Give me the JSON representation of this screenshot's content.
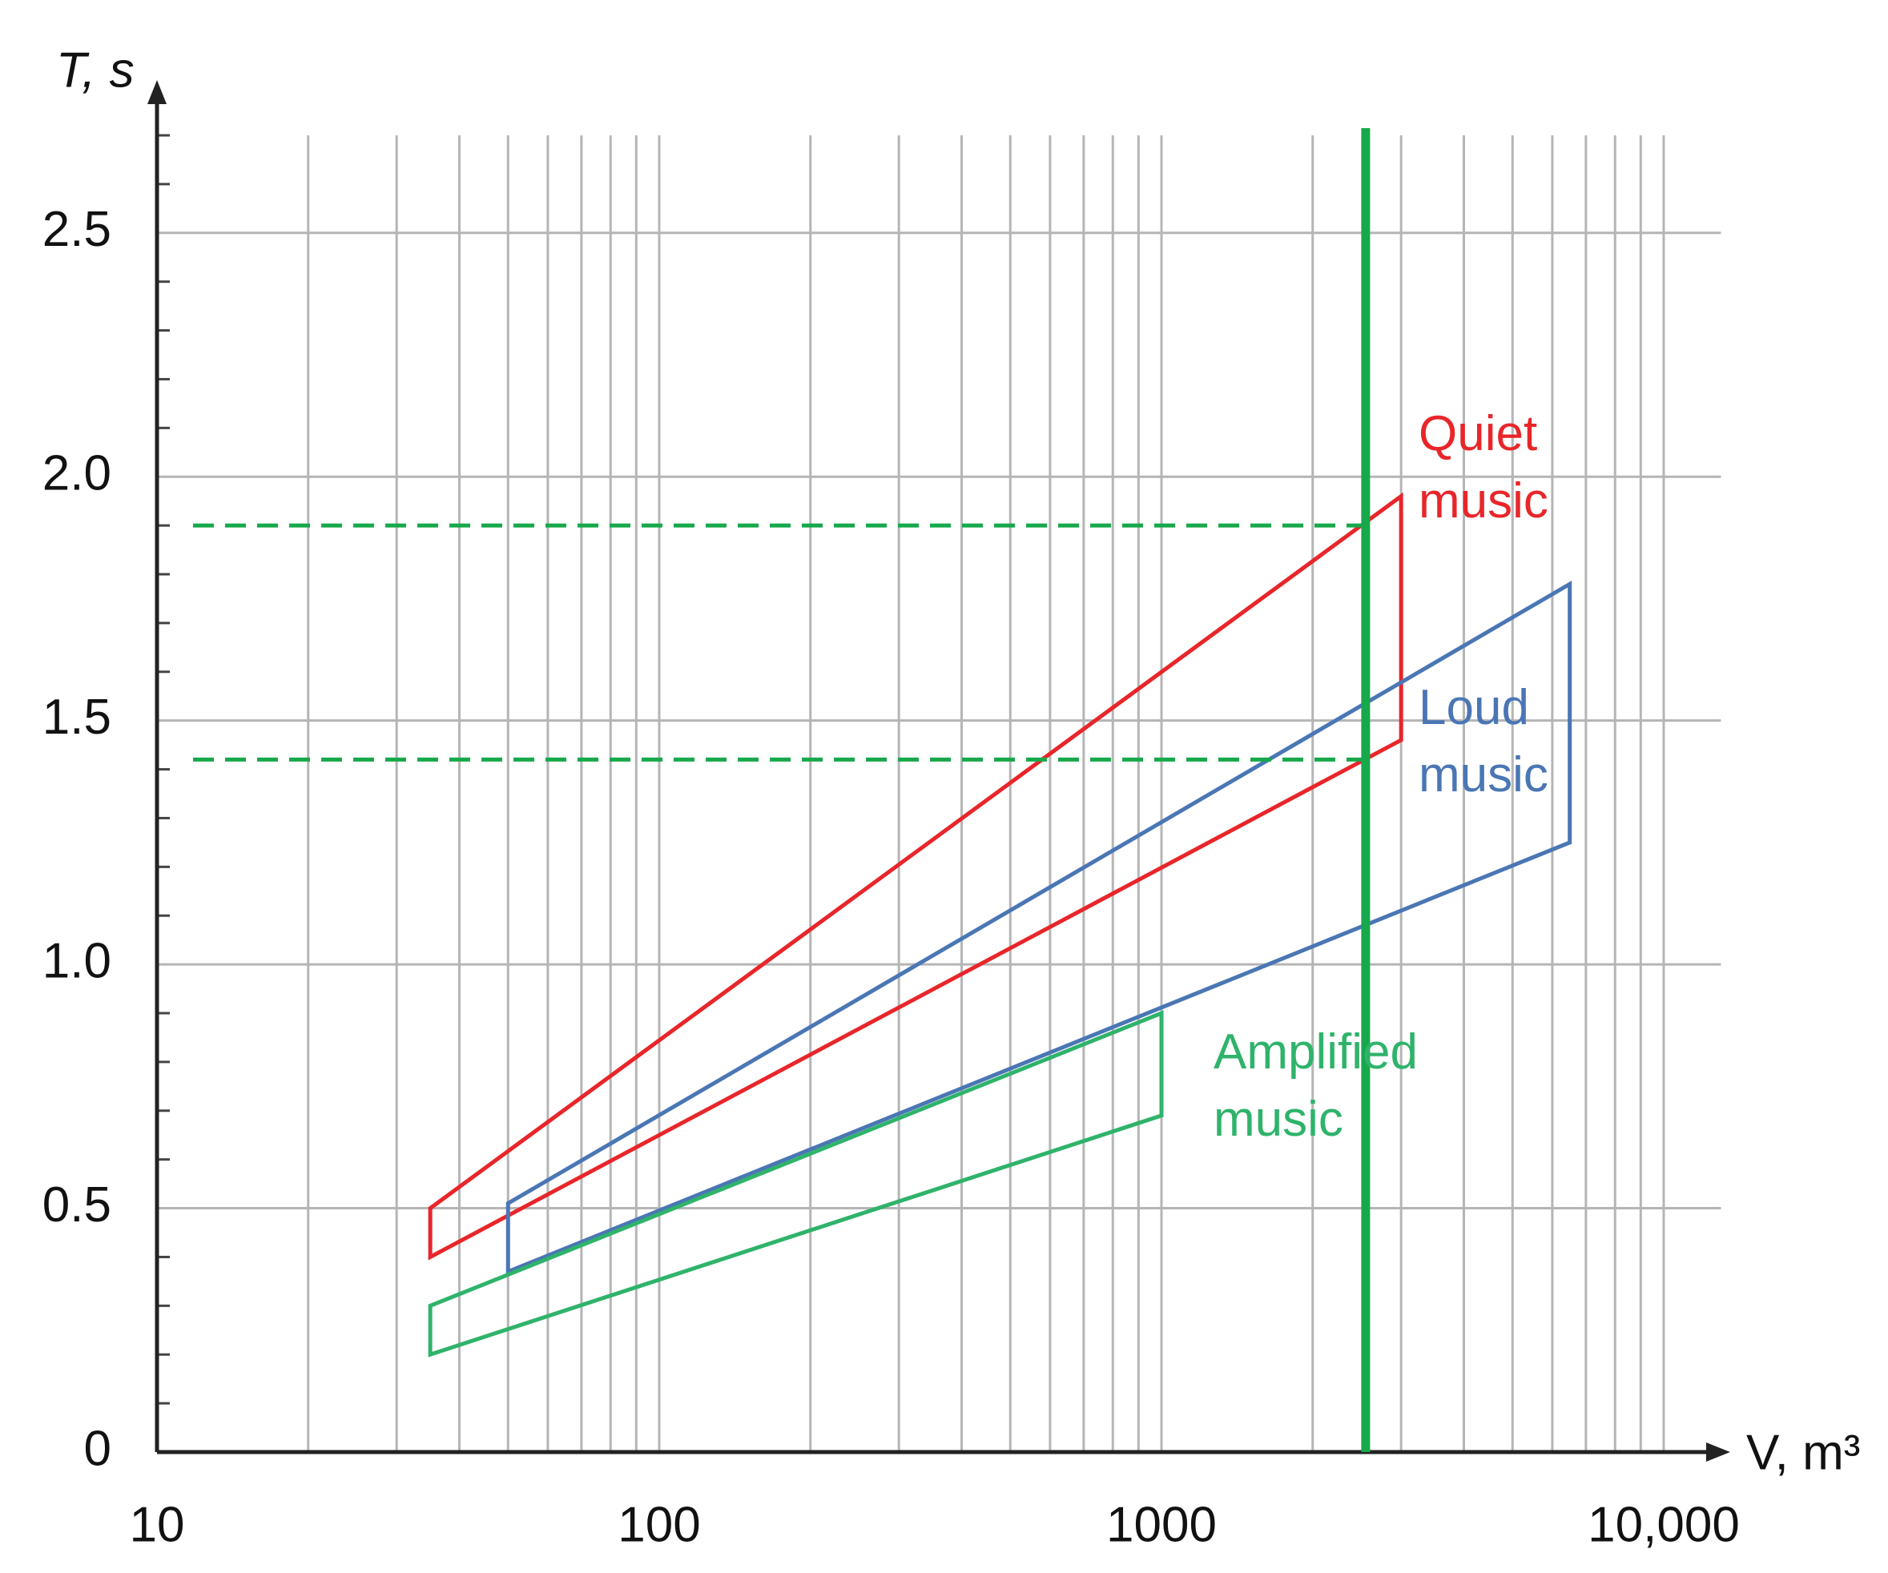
{
  "chart_data": {
    "type": "line",
    "xlabel": "V, m³",
    "ylabel": "T, s",
    "xscale": "log",
    "xlim": [
      10,
      13000
    ],
    "ylim": [
      0,
      2.7
    ],
    "xticks": [
      10,
      100,
      1000,
      {
        "value": 10000,
        "label": "10,000"
      }
    ],
    "xminorticks": [
      20,
      30,
      40,
      50,
      60,
      70,
      80,
      90,
      200,
      300,
      400,
      500,
      600,
      700,
      800,
      900,
      2000,
      3000,
      4000,
      5000,
      6000,
      7000,
      8000,
      9000
    ],
    "yticks": [
      0,
      {
        "value": 0.5,
        "label": "0.5"
      },
      {
        "value": 1,
        "label": "1.0"
      },
      {
        "value": 1.5,
        "label": "1.5"
      },
      {
        "value": 2,
        "label": "2.0"
      },
      {
        "value": 2.5,
        "label": "2.5"
      }
    ],
    "yminorticks": [
      0.1,
      0.2,
      0.3,
      0.4,
      0.6,
      0.7,
      0.8,
      0.9,
      1.1,
      1.2,
      1.3,
      1.4,
      1.6,
      1.7,
      1.8,
      1.9,
      2.1,
      2.2,
      2.3,
      2.4,
      2.6,
      2.7
    ],
    "grid": true,
    "series": [
      {
        "name": "Quiet music",
        "color": "#e8262a",
        "x": [
          35,
          3000,
          3000,
          35
        ],
        "values": [
          0.5,
          1.96,
          1.46,
          0.4
        ]
      },
      {
        "name": "Loud music",
        "color": "#4a76b4",
        "x": [
          50,
          6500,
          6500,
          50
        ],
        "values": [
          0.51,
          1.78,
          1.25,
          0.37
        ]
      },
      {
        "name": "Amplified music",
        "color": "#2fb36b",
        "x": [
          35,
          1000,
          1000,
          35
        ],
        "values": [
          0.3,
          0.9,
          0.69,
          0.2
        ]
      }
    ],
    "vline": {
      "x": 2550,
      "color": "#17a84b"
    },
    "hlines": {
      "values": [
        1.9,
        1.42
      ],
      "color": "#17a84b"
    }
  }
}
